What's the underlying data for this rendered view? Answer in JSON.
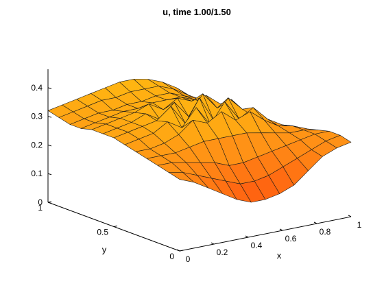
{
  "chart_data": {
    "type": "surface",
    "title": "u, time 1.00/1.50",
    "xlabel": "x",
    "ylabel": "y",
    "zlabel": "",
    "xlim": [
      0,
      1
    ],
    "ylim": [
      0,
      1
    ],
    "zlim": [
      0,
      0.45
    ],
    "xticks": [
      {
        "value": 0,
        "label": "0"
      },
      {
        "value": 0.2,
        "label": "0.2"
      },
      {
        "value": 0.4,
        "label": "0.4"
      },
      {
        "value": 0.6,
        "label": "0.6"
      },
      {
        "value": 0.8,
        "label": "0.8"
      },
      {
        "value": 1,
        "label": "1"
      }
    ],
    "yticks": [
      {
        "value": 0,
        "label": "0"
      },
      {
        "value": 0.5,
        "label": "0.5"
      },
      {
        "value": 1,
        "label": "1"
      }
    ],
    "zticks": [
      {
        "value": 0,
        "label": "0"
      },
      {
        "value": 0.1,
        "label": "0.1"
      },
      {
        "value": 0.2,
        "label": "0.2"
      },
      {
        "value": 0.3,
        "label": "0.3"
      },
      {
        "value": 0.4,
        "label": "0.4"
      }
    ],
    "grid_x": [
      0,
      0.083,
      0.167,
      0.25,
      0.333,
      0.417,
      0.5,
      0.583,
      0.667,
      0.75,
      0.833,
      0.917,
      1
    ],
    "grid_y": [
      0,
      0.083,
      0.167,
      0.25,
      0.333,
      0.417,
      0.5,
      0.583,
      0.667,
      0.75,
      0.833,
      0.917,
      1
    ],
    "z": [
      [
        0.25,
        0.23,
        0.2,
        0.17,
        0.14,
        0.12,
        0.12,
        0.13,
        0.15,
        0.19,
        0.23,
        0.25,
        0.26
      ],
      [
        0.26,
        0.25,
        0.23,
        0.21,
        0.19,
        0.17,
        0.17,
        0.18,
        0.2,
        0.22,
        0.24,
        0.26,
        0.27
      ],
      [
        0.27,
        0.27,
        0.26,
        0.25,
        0.24,
        0.22,
        0.22,
        0.23,
        0.24,
        0.25,
        0.26,
        0.27,
        0.27
      ],
      [
        0.28,
        0.28,
        0.28,
        0.29,
        0.3,
        0.3,
        0.3,
        0.3,
        0.29,
        0.28,
        0.27,
        0.27,
        0.26
      ],
      [
        0.29,
        0.29,
        0.3,
        0.32,
        0.36,
        0.34,
        0.37,
        0.33,
        0.35,
        0.31,
        0.28,
        0.27,
        0.25
      ],
      [
        0.3,
        0.31,
        0.32,
        0.35,
        0.32,
        0.38,
        0.31,
        0.38,
        0.31,
        0.34,
        0.29,
        0.26,
        0.24
      ],
      [
        0.31,
        0.32,
        0.33,
        0.34,
        0.38,
        0.31,
        0.39,
        0.3,
        0.37,
        0.32,
        0.28,
        0.25,
        0.23
      ],
      [
        0.31,
        0.32,
        0.33,
        0.35,
        0.32,
        0.37,
        0.31,
        0.38,
        0.32,
        0.34,
        0.28,
        0.24,
        0.22
      ],
      [
        0.31,
        0.32,
        0.33,
        0.34,
        0.36,
        0.33,
        0.36,
        0.34,
        0.35,
        0.31,
        0.27,
        0.24,
        0.21
      ],
      [
        0.3,
        0.31,
        0.32,
        0.33,
        0.33,
        0.34,
        0.34,
        0.34,
        0.32,
        0.3,
        0.26,
        0.23,
        0.21
      ],
      [
        0.3,
        0.31,
        0.32,
        0.32,
        0.33,
        0.33,
        0.34,
        0.34,
        0.32,
        0.3,
        0.26,
        0.23,
        0.21
      ],
      [
        0.31,
        0.32,
        0.33,
        0.34,
        0.34,
        0.35,
        0.35,
        0.35,
        0.33,
        0.3,
        0.26,
        0.23,
        0.21
      ],
      [
        0.32,
        0.33,
        0.34,
        0.35,
        0.36,
        0.37,
        0.37,
        0.36,
        0.34,
        0.31,
        0.27,
        0.23,
        0.21
      ]
    ],
    "colormap": [
      "#ff5a10",
      "#ff8f16",
      "#ffc010"
    ],
    "grid": false,
    "legend": "none"
  }
}
